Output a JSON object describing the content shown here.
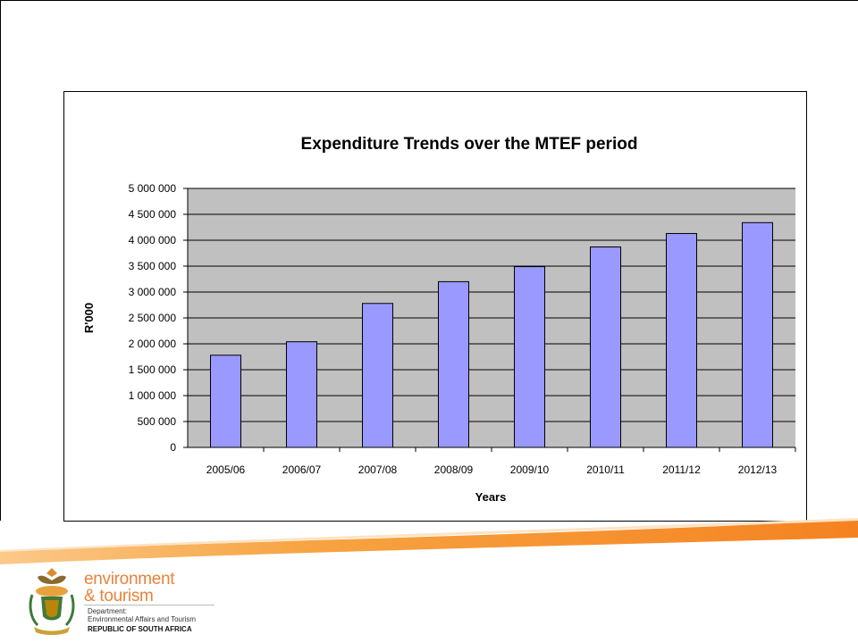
{
  "chart_data": {
    "type": "bar",
    "title": "Expenditure Trends over the MTEF period",
    "xlabel": "Years",
    "ylabel": "R'000",
    "categories": [
      "2005/06",
      "2006/07",
      "2007/08",
      "2008/09",
      "2009/10",
      "2010/11",
      "2011/12",
      "2012/13"
    ],
    "values": [
      1780000,
      2040000,
      2780000,
      3200000,
      3490000,
      3870000,
      4130000,
      4340000
    ],
    "ylim": [
      0,
      5000000
    ],
    "yticks": [
      0,
      500000,
      1000000,
      1500000,
      2000000,
      2500000,
      3000000,
      3500000,
      4000000,
      4500000,
      5000000
    ],
    "ytick_labels": [
      "0",
      "500 000",
      "1 000 000",
      "1 500 000",
      "2 000 000",
      "2 500 000",
      "3 000 000",
      "3 500 000",
      "4 000 000",
      "4 500 000",
      "5 000 000"
    ],
    "grid": true,
    "legend": "none",
    "colors": {
      "bar": "#9999ff",
      "plot_bg": "#c0c0c0",
      "gridline": "#000000"
    }
  },
  "footer": {
    "logo_line1": "environment",
    "logo_line2": "& tourism",
    "dept_line1": "Department:",
    "dept_line2": "Environmental Affairs and Tourism",
    "country": "REPUBLIC OF SOUTH AFRICA",
    "accent_color": "#f7941d"
  }
}
